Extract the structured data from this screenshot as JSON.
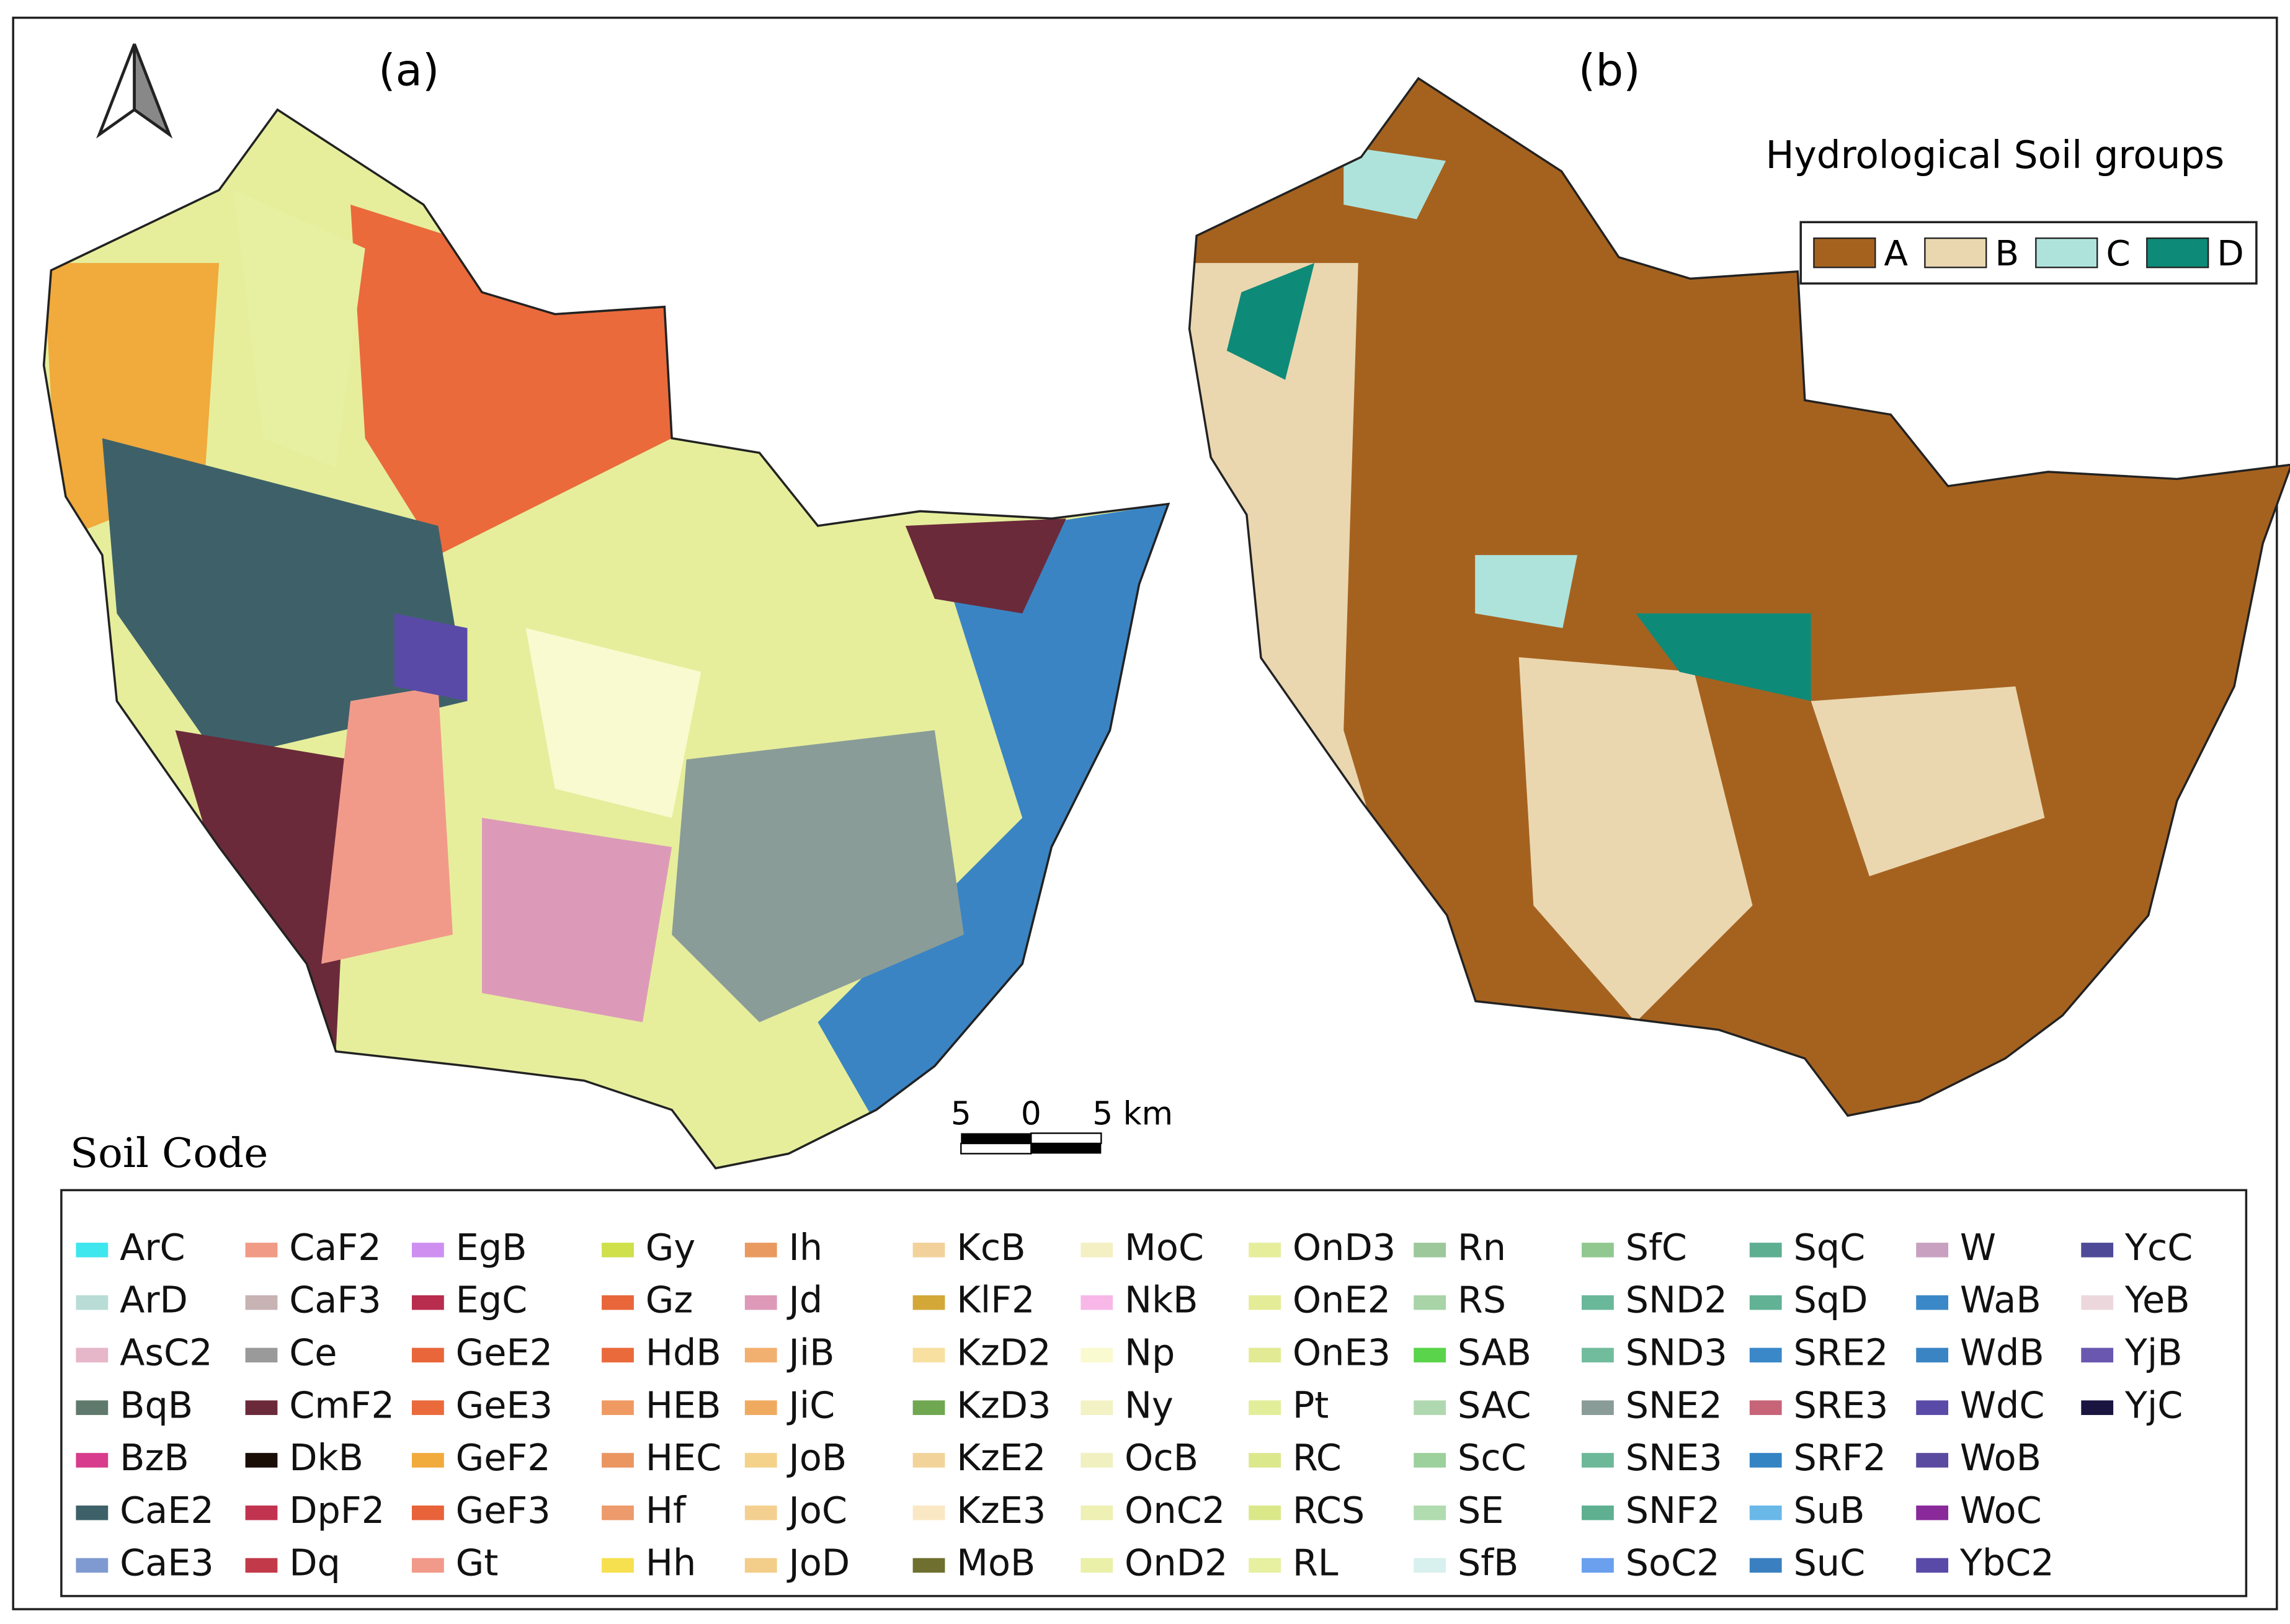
{
  "panel_a": {
    "label": "(a)",
    "legend_title": "Soil Code",
    "soils": [
      {
        "code": "ArC",
        "color": "#3ee6ee"
      },
      {
        "code": "ArD",
        "color": "#b9dcd6"
      },
      {
        "code": "AsC2",
        "color": "#e6b7c9"
      },
      {
        "code": "BqB",
        "color": "#5f7a6c"
      },
      {
        "code": "BzB",
        "color": "#d83c8c"
      },
      {
        "code": "CaE2",
        "color": "#3e6169"
      },
      {
        "code": "CaE3",
        "color": "#7f9ad0"
      },
      {
        "code": "CaF2",
        "color": "#f19a85"
      },
      {
        "code": "CaF3",
        "color": "#c7b2b4"
      },
      {
        "code": "Ce",
        "color": "#9a9a9a"
      },
      {
        "code": "CmF2",
        "color": "#6b2a3a"
      },
      {
        "code": "DkB",
        "color": "#1a0d05"
      },
      {
        "code": "DpF2",
        "color": "#c23350"
      },
      {
        "code": "Dq",
        "color": "#c23a4a"
      },
      {
        "code": "EgB",
        "color": "#cf8ff0"
      },
      {
        "code": "EgC",
        "color": "#b82c4e"
      },
      {
        "code": "GeE2",
        "color": "#e8663a"
      },
      {
        "code": "GeE3",
        "color": "#ea6a3c"
      },
      {
        "code": "GeF2",
        "color": "#f1aa3c"
      },
      {
        "code": "GeF3",
        "color": "#e8623a"
      },
      {
        "code": "Gt",
        "color": "#f29a8a"
      },
      {
        "code": "Gy",
        "color": "#cfe04a"
      },
      {
        "code": "Gz",
        "color": "#e8663a"
      },
      {
        "code": "HdB",
        "color": "#ea6a3c"
      },
      {
        "code": "HEB",
        "color": "#ef9a62"
      },
      {
        "code": "HEC",
        "color": "#eb9660"
      },
      {
        "code": "Hf",
        "color": "#ed9a6c"
      },
      {
        "code": "Hh",
        "color": "#f7e050"
      },
      {
        "code": "Ih",
        "color": "#e89a60"
      },
      {
        "code": "Jd",
        "color": "#dd9ab8"
      },
      {
        "code": "JiB",
        "color": "#f2b070"
      },
      {
        "code": "JiC",
        "color": "#f0aa60"
      },
      {
        "code": "JoB",
        "color": "#f4d28a"
      },
      {
        "code": "JoC",
        "color": "#f4d090"
      },
      {
        "code": "JoD",
        "color": "#f2ce8a"
      },
      {
        "code": "KcB",
        "color": "#f2d29a"
      },
      {
        "code": "KlF2",
        "color": "#d3a838"
      },
      {
        "code": "KzD2",
        "color": "#f7e0a0"
      },
      {
        "code": "KzD3",
        "color": "#6fa850"
      },
      {
        "code": "KzE2",
        "color": "#f2d49a"
      },
      {
        "code": "KzE3",
        "color": "#fae8c4"
      },
      {
        "code": "MoB",
        "color": "#6f6f2f"
      },
      {
        "code": "MoC",
        "color": "#f4f0c4"
      },
      {
        "code": "NkB",
        "color": "#f7b8e8"
      },
      {
        "code": "Np",
        "color": "#fafad0"
      },
      {
        "code": "Ny",
        "color": "#f2f2c4"
      },
      {
        "code": "OcB",
        "color": "#f0f0c0"
      },
      {
        "code": "OnC2",
        "color": "#eef0b4"
      },
      {
        "code": "OnD2",
        "color": "#eaf0a8"
      },
      {
        "code": "OnD3",
        "color": "#e6ee9c"
      },
      {
        "code": "OnE2",
        "color": "#e4ec98"
      },
      {
        "code": "OnE3",
        "color": "#e2ea94"
      },
      {
        "code": "Pt",
        "color": "#e2ee9a"
      },
      {
        "code": "RC",
        "color": "#dce88c"
      },
      {
        "code": "RCS",
        "color": "#dae88a"
      },
      {
        "code": "RL",
        "color": "#e6f0a0"
      },
      {
        "code": "Rn",
        "color": "#9cc89c"
      },
      {
        "code": "RS",
        "color": "#a8d4a8"
      },
      {
        "code": "SAB",
        "color": "#5ad44a"
      },
      {
        "code": "SAC",
        "color": "#b0d8b0"
      },
      {
        "code": "ScC",
        "color": "#9cd09c"
      },
      {
        "code": "SE",
        "color": "#b0dcb0"
      },
      {
        "code": "SfB",
        "color": "#d8f0ee"
      },
      {
        "code": "SfC",
        "color": "#90c890"
      },
      {
        "code": "SND2",
        "color": "#6ab89a"
      },
      {
        "code": "SND3",
        "color": "#72bc9e"
      },
      {
        "code": "SNE2",
        "color": "#8a9c98"
      },
      {
        "code": "SNE3",
        "color": "#6cb898"
      },
      {
        "code": "SNF2",
        "color": "#5eb090"
      },
      {
        "code": "SoC2",
        "color": "#6aa0ee"
      },
      {
        "code": "SqC",
        "color": "#5eae92"
      },
      {
        "code": "SqD",
        "color": "#62b296"
      },
      {
        "code": "SRE2",
        "color": "#3a88c8"
      },
      {
        "code": "SRE3",
        "color": "#c86478"
      },
      {
        "code": "SRF2",
        "color": "#3484c4"
      },
      {
        "code": "SuB",
        "color": "#6ab8e8"
      },
      {
        "code": "SuC",
        "color": "#3a80c0"
      },
      {
        "code": "W",
        "color": "#c8a0c0"
      },
      {
        "code": "WaB",
        "color": "#3a88c8"
      },
      {
        "code": "WdB",
        "color": "#3a84c4"
      },
      {
        "code": "WdC",
        "color": "#5a4aa8"
      },
      {
        "code": "WoB",
        "color": "#5a4aa0"
      },
      {
        "code": "WoC",
        "color": "#8a2a9a"
      },
      {
        "code": "YbC2",
        "color": "#5a4aa8"
      },
      {
        "code": "YcC",
        "color": "#4e4a98"
      },
      {
        "code": "YeB",
        "color": "#ecd8dc"
      },
      {
        "code": "YjB",
        "color": "#6a58b0"
      },
      {
        "code": "YjC",
        "color": "#1a1440"
      }
    ]
  },
  "panel_b": {
    "label": "(b)",
    "legend_title": "Hydrological Soil groups",
    "groups": [
      {
        "name": "A",
        "color": "#a5621f"
      },
      {
        "name": "B",
        "color": "#ead7b0"
      },
      {
        "name": "C",
        "color": "#aee3dc"
      },
      {
        "name": "D",
        "color": "#0e8a78"
      }
    ]
  },
  "scale_bar": {
    "labels": [
      "5",
      "0",
      "5 km"
    ]
  }
}
